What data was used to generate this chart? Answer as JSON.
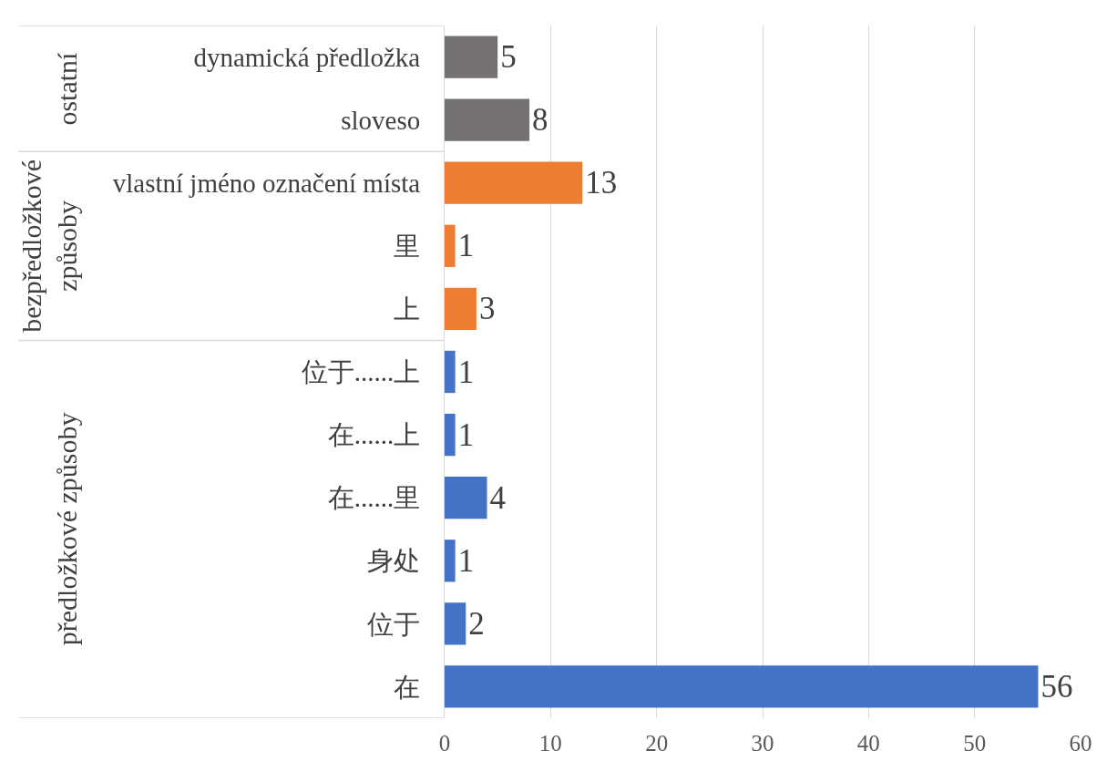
{
  "chart_data": {
    "type": "bar",
    "orientation": "horizontal",
    "categories": [
      "dynamická předložka",
      "sloveso",
      "vlastní jméno označení místa",
      "里",
      "上",
      "位于......上",
      "在......上",
      "在......里",
      "身处",
      "位于",
      "在"
    ],
    "values": [
      5,
      8,
      13,
      1,
      3,
      1,
      1,
      4,
      1,
      2,
      56
    ],
    "colors": [
      "#767171",
      "#767171",
      "#ed7d31",
      "#ed7d31",
      "#ed7d31",
      "#4472c4",
      "#4472c4",
      "#4472c4",
      "#4472c4",
      "#4472c4",
      "#4472c4"
    ],
    "annotations": [
      "ostatní",
      "bezpředložkové způsoby",
      "předložkové způsoby"
    ],
    "xlim": [
      0,
      60
    ],
    "xticks": [
      0,
      10,
      20,
      30,
      40,
      50,
      60
    ],
    "grid": "x",
    "data_labels": true,
    "legend": false
  }
}
